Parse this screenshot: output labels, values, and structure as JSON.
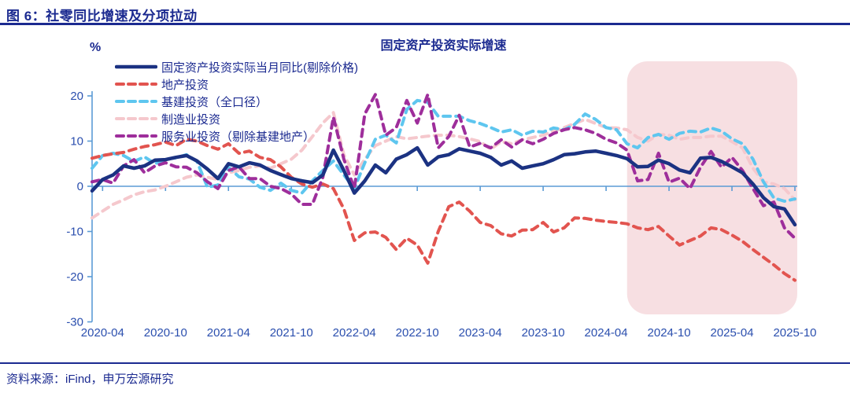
{
  "header": {
    "title": "图 6：社零同比增速及分项拉动"
  },
  "footer": {
    "source": "资料来源：iFind，申万宏源研究"
  },
  "colors": {
    "text_dark": "#1B2A90",
    "tick_label": "#2B4FAE",
    "axis_line": "#5B9BD5",
    "highlight": "#F7DFE2"
  },
  "chart_data": {
    "type": "line",
    "title": "固定资产投资实际增速",
    "unit_label": "%",
    "ylim": [
      -30,
      20
    ],
    "yticks": [
      20,
      10,
      0,
      -10,
      -20,
      -30
    ],
    "xtick_labels": [
      "2020-04",
      "2020-10",
      "2021-04",
      "2021-10",
      "2022-04",
      "2022-10",
      "2023-04",
      "2023-10",
      "2024-04",
      "2024-10",
      "2025-04",
      "2025-10"
    ],
    "highlight_region": {
      "start": "2024-06",
      "end": "2025-10",
      "color": "#F7DFE2"
    },
    "x": [
      "2020-03",
      "2020-04",
      "2020-05",
      "2020-06",
      "2020-07",
      "2020-08",
      "2020-09",
      "2020-10",
      "2020-11",
      "2020-12",
      "2021-01",
      "2021-02",
      "2021-03",
      "2021-04",
      "2021-05",
      "2021-06",
      "2021-07",
      "2021-08",
      "2021-09",
      "2021-10",
      "2021-11",
      "2021-12",
      "2022-01",
      "2022-02",
      "2022-03",
      "2022-04",
      "2022-05",
      "2022-06",
      "2022-07",
      "2022-08",
      "2022-09",
      "2022-10",
      "2022-11",
      "2022-12",
      "2023-01",
      "2023-02",
      "2023-03",
      "2023-04",
      "2023-05",
      "2023-06",
      "2023-07",
      "2023-08",
      "2023-09",
      "2023-10",
      "2023-11",
      "2023-12",
      "2024-01",
      "2024-02",
      "2024-03",
      "2024-04",
      "2024-05",
      "2024-06",
      "2024-07",
      "2024-08",
      "2024-09",
      "2024-10",
      "2024-11",
      "2024-12",
      "2025-01",
      "2025-02",
      "2025-03",
      "2025-04",
      "2025-05",
      "2025-06",
      "2025-07",
      "2025-08",
      "2025-09",
      "2025-10"
    ],
    "series": [
      {
        "name": "固定资产投资实际当月同比(剔除价格)",
        "color": "#1B3282",
        "dashed": false,
        "width": 4.5,
        "values": [
          -1.0,
          1.5,
          2.5,
          4.5,
          4.0,
          4.5,
          5.8,
          5.9,
          6.4,
          6.8,
          5.6,
          3.8,
          1.7,
          5.0,
          4.3,
          5.2,
          4.7,
          3.5,
          2.6,
          1.7,
          1.2,
          0.8,
          2.5,
          8.0,
          3.5,
          -1.5,
          1.2,
          4.7,
          3.0,
          6.0,
          7.0,
          8.5,
          4.7,
          6.5,
          7.0,
          8.3,
          7.8,
          7.3,
          6.4,
          4.7,
          5.6,
          4.0,
          4.5,
          5.0,
          5.9,
          7.0,
          7.2,
          7.6,
          7.8,
          7.3,
          6.8,
          6.1,
          4.3,
          4.4,
          5.8,
          5.0,
          3.6,
          3.0,
          6.2,
          6.4,
          5.5,
          4.3,
          3.0,
          0.5,
          -2.5,
          -4.5,
          -5.0,
          -8.5
        ]
      },
      {
        "name": "地产投资",
        "color": "#E2544F",
        "dashed": true,
        "width": 4,
        "values": [
          6.2,
          6.8,
          7.2,
          7.5,
          8.2,
          8.8,
          9.2,
          9.8,
          9.0,
          10.4,
          10.0,
          9.0,
          8.2,
          9.4,
          7.3,
          7.8,
          6.4,
          5.9,
          4.3,
          2.0,
          0.5,
          -0.2,
          0.5,
          -0.5,
          -5.0,
          -12.0,
          -10.3,
          -10.1,
          -11.3,
          -14.0,
          -11.5,
          -13.0,
          -17.0,
          -10.0,
          -4.5,
          -3.5,
          -5.5,
          -8.0,
          -8.7,
          -10.5,
          -11.0,
          -9.7,
          -9.6,
          -8.0,
          -10.1,
          -9.2,
          -7.0,
          -7.1,
          -7.5,
          -7.8,
          -8.0,
          -8.3,
          -9.2,
          -9.6,
          -8.9,
          -11.0,
          -13.0,
          -12.0,
          -11.0,
          -9.2,
          -9.6,
          -10.8,
          -12.2,
          -14.0,
          -15.7,
          -17.4,
          -19.3,
          -20.8
        ]
      },
      {
        "name": "基建投资（全口径）",
        "color": "#5EC6EF",
        "dashed": true,
        "width": 4,
        "values": [
          4.0,
          6.8,
          7.3,
          6.8,
          5.5,
          6.5,
          5.0,
          6.0,
          6.3,
          7.0,
          5.5,
          -0.2,
          0.3,
          4.2,
          2.1,
          1.6,
          -0.2,
          -0.9,
          0.7,
          -0.9,
          -1.5,
          1.2,
          3.5,
          5.6,
          2.5,
          -0.5,
          5.2,
          10.4,
          11.3,
          9.6,
          17.0,
          19.0,
          18.6,
          15.5,
          15.5,
          15.5,
          14.5,
          13.9,
          13.0,
          12.0,
          12.5,
          11.3,
          12.2,
          12.0,
          12.9,
          12.5,
          13.7,
          16.0,
          14.8,
          13.0,
          12.5,
          9.4,
          8.5,
          10.8,
          11.5,
          10.4,
          11.7,
          12.2,
          12.0,
          12.9,
          12.2,
          10.5,
          9.4,
          6.0,
          1.0,
          -2.6,
          -3.3,
          -2.8
        ]
      },
      {
        "name": "制造业投资",
        "color": "#F5C8CD",
        "dashed": true,
        "width": 4,
        "values": [
          -7.0,
          -5.5,
          -4.0,
          -3.0,
          -1.9,
          -1.2,
          -0.8,
          0.0,
          1.0,
          2.0,
          2.5,
          2.0,
          1.5,
          3.0,
          3.5,
          4.2,
          4.5,
          4.0,
          5.0,
          6.0,
          8.0,
          11.0,
          14.0,
          16.3,
          7.0,
          2.5,
          6.0,
          9.0,
          10.0,
          11.0,
          10.5,
          10.8,
          11.1,
          11.3,
          11.3,
          11.0,
          10.5,
          9.9,
          8.2,
          9.9,
          9.4,
          10.3,
          10.8,
          11.3,
          12.2,
          13.0,
          13.9,
          14.8,
          13.9,
          13.0,
          12.9,
          12.5,
          10.8,
          10.0,
          11.5,
          11.3,
          10.4,
          10.8,
          10.8,
          11.1,
          11.1,
          9.9,
          8.5,
          4.0,
          1.0,
          0.5,
          -0.5,
          -3.0
        ]
      },
      {
        "name": "服务业投资（剔除基建地产）",
        "color": "#9E2E9B",
        "dashed": true,
        "width": 4,
        "values": [
          1.0,
          1.5,
          0.7,
          4.5,
          5.9,
          3.0,
          4.5,
          5.2,
          4.3,
          4.2,
          3.0,
          1.0,
          -0.5,
          3.5,
          4.3,
          1.7,
          1.7,
          0.0,
          -0.5,
          -1.7,
          -4.0,
          -4.0,
          2.0,
          15.3,
          6.0,
          -0.5,
          16.0,
          20.3,
          11.3,
          13.0,
          19.0,
          14.0,
          20.3,
          8.5,
          11.0,
          15.7,
          8.7,
          9.5,
          8.5,
          10.3,
          8.7,
          10.3,
          9.4,
          10.4,
          11.7,
          12.5,
          13.0,
          12.5,
          11.7,
          10.4,
          9.6,
          8.0,
          1.2,
          1.5,
          7.3,
          0.9,
          1.8,
          -0.5,
          4.2,
          7.7,
          4.2,
          6.4,
          3.5,
          -0.5,
          -4.3,
          -3.5,
          -9.2,
          -11.5
        ]
      }
    ]
  }
}
